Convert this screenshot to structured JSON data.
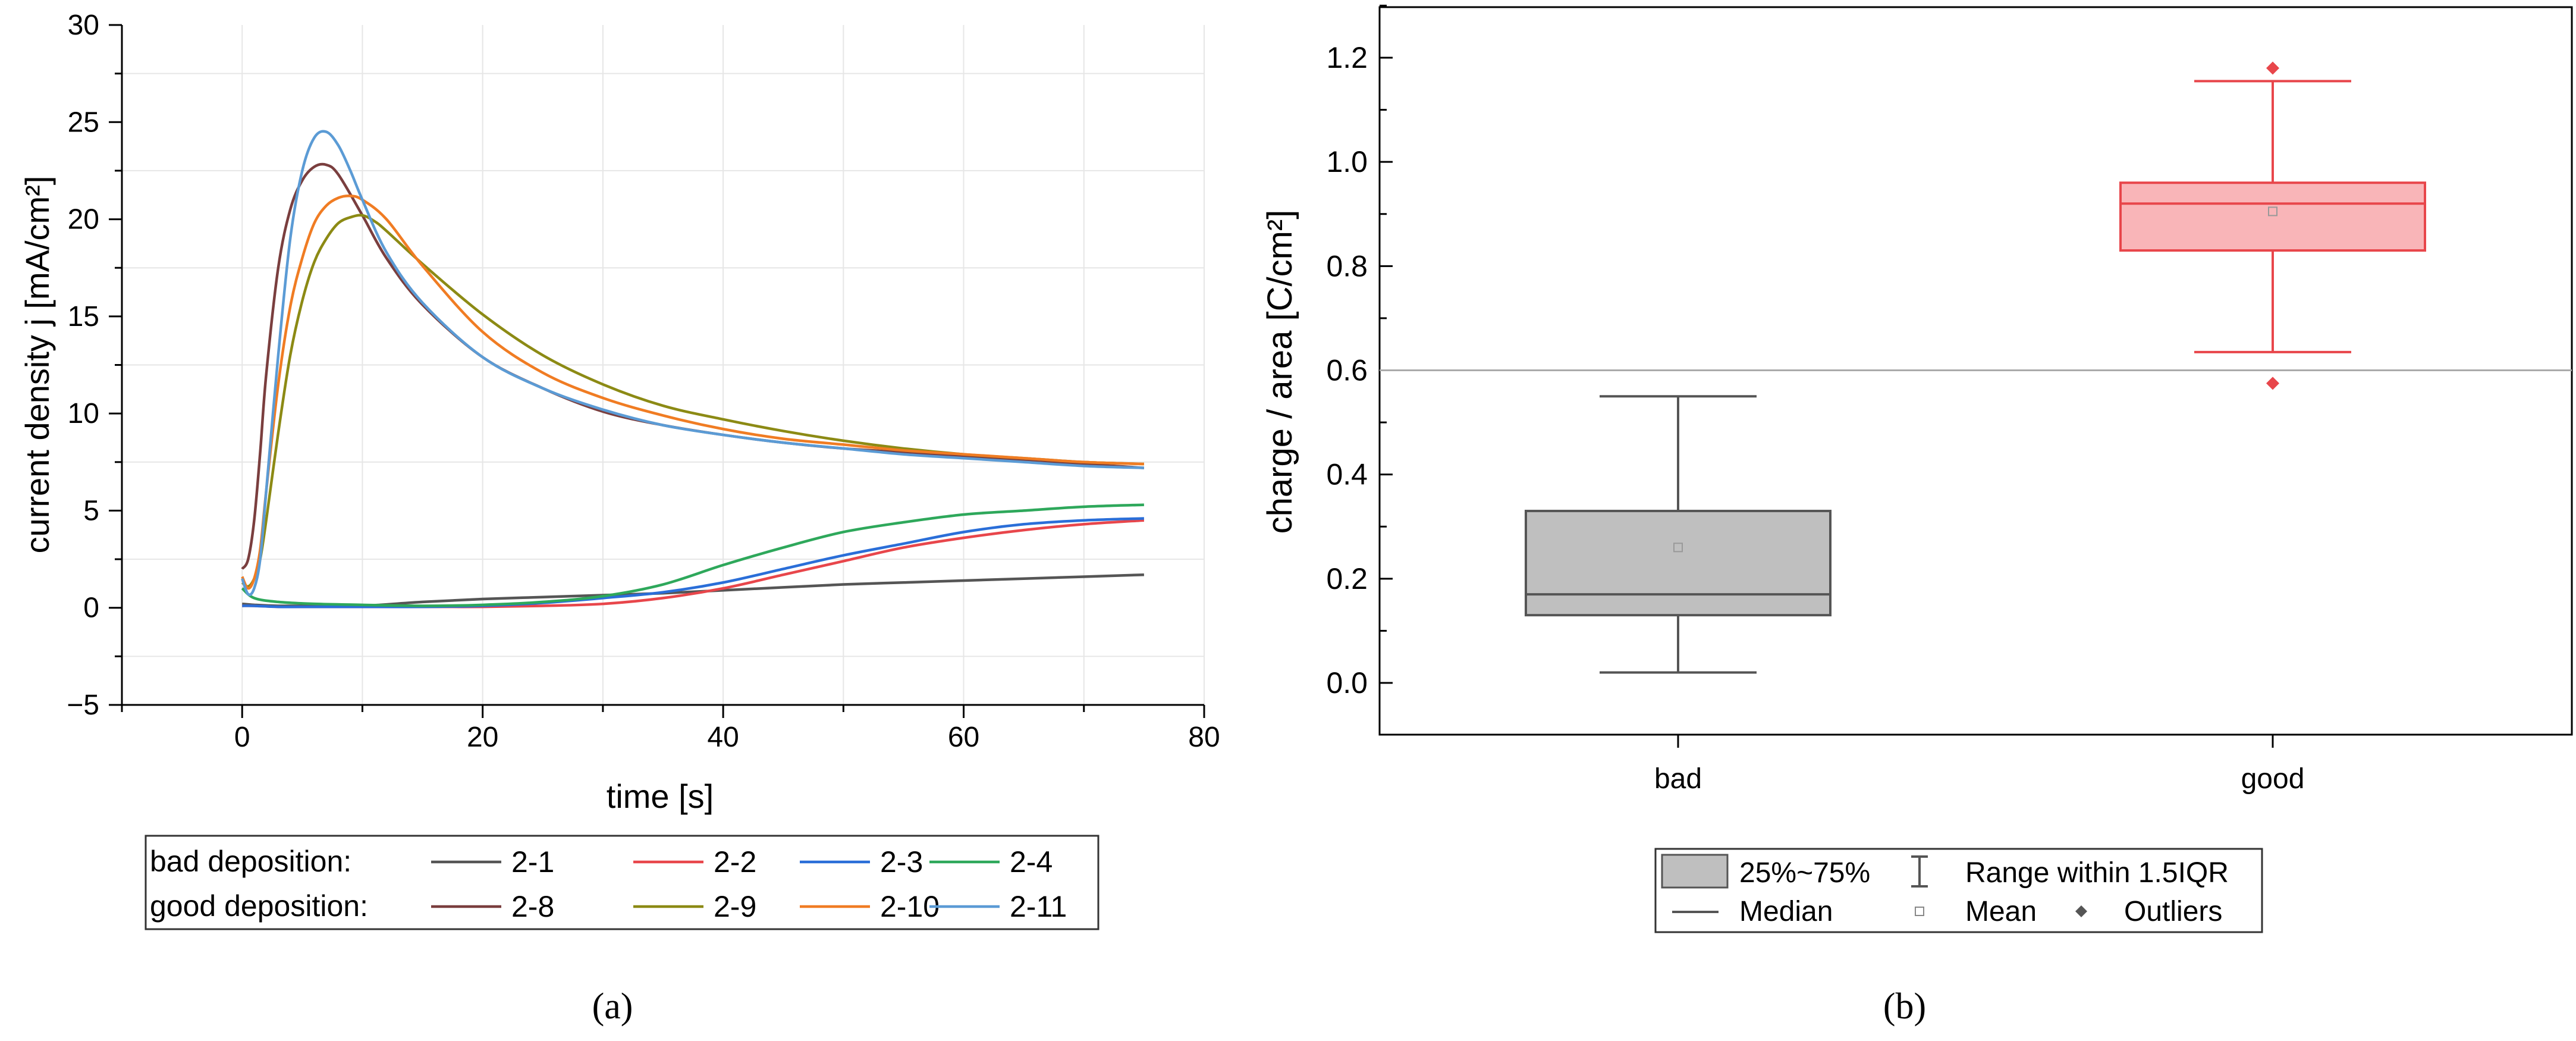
{
  "chart_data": [
    {
      "panel": "(a)",
      "type": "line",
      "xlabel": "time [s]",
      "ylabel": "current density j [mA/cm²]",
      "xlim": [
        -10,
        80
      ],
      "ylim": [
        -5,
        30
      ],
      "xticks": [
        0,
        20,
        40,
        60,
        80
      ],
      "yticks": [
        -5,
        0,
        5,
        10,
        15,
        20,
        25,
        30
      ],
      "ytick_labels": [
        "−5",
        "0",
        "5",
        "10",
        "15",
        "20",
        "25",
        "30"
      ],
      "grid": true,
      "legend": {
        "placement": "bottom",
        "row_labels": [
          "bad deposition:",
          "good deposition:"
        ]
      },
      "series": [
        {
          "name": "2-1",
          "group": "bad deposition",
          "color": "#555555",
          "x": [
            0,
            1,
            3,
            6,
            10,
            15,
            20,
            25,
            30,
            35,
            40,
            45,
            50,
            55,
            60,
            65,
            70,
            75
          ],
          "y": [
            0.2,
            0.15,
            0.1,
            0.1,
            0.1,
            0.3,
            0.45,
            0.55,
            0.65,
            0.75,
            0.9,
            1.05,
            1.2,
            1.3,
            1.4,
            1.5,
            1.6,
            1.7
          ]
        },
        {
          "name": "2-2",
          "group": "bad deposition",
          "color": "#e8464b",
          "x": [
            0,
            1,
            3,
            6,
            10,
            15,
            20,
            25,
            30,
            35,
            40,
            45,
            50,
            55,
            60,
            65,
            70,
            75
          ],
          "y": [
            0.1,
            0.1,
            0.05,
            0.05,
            0.05,
            0.05,
            0.05,
            0.1,
            0.2,
            0.5,
            1.0,
            1.7,
            2.4,
            3.1,
            3.6,
            4.0,
            4.3,
            4.5
          ]
        },
        {
          "name": "2-3",
          "group": "bad deposition",
          "color": "#2a6ed8",
          "x": [
            0,
            1,
            3,
            6,
            10,
            15,
            20,
            25,
            30,
            35,
            40,
            45,
            50,
            55,
            60,
            65,
            70,
            75
          ],
          "y": [
            0.1,
            0.1,
            0.05,
            0.05,
            0.05,
            0.05,
            0.1,
            0.25,
            0.5,
            0.8,
            1.3,
            2.0,
            2.7,
            3.3,
            3.9,
            4.3,
            4.5,
            4.6
          ]
        },
        {
          "name": "2-4",
          "group": "bad deposition",
          "color": "#2ea85b",
          "x": [
            0,
            1,
            3,
            6,
            10,
            15,
            20,
            25,
            30,
            35,
            40,
            45,
            50,
            55,
            60,
            65,
            70,
            75
          ],
          "y": [
            1.0,
            0.5,
            0.3,
            0.2,
            0.15,
            0.1,
            0.15,
            0.3,
            0.6,
            1.2,
            2.2,
            3.1,
            3.9,
            4.4,
            4.8,
            5.0,
            5.2,
            5.3
          ]
        },
        {
          "name": "2-8",
          "group": "good deposition",
          "color": "#7a3e3e",
          "x": [
            0,
            0.5,
            1,
            1.5,
            2,
            3,
            4,
            5,
            6,
            7,
            8,
            10,
            12,
            15,
            20,
            25,
            30,
            35,
            40,
            45,
            50,
            55,
            60,
            65,
            70,
            75
          ],
          "y": [
            2.0,
            2.5,
            4.5,
            8,
            12,
            17.5,
            20.5,
            22,
            22.7,
            22.8,
            22.3,
            20.2,
            18.0,
            15.6,
            12.9,
            11.3,
            10.1,
            9.4,
            8.9,
            8.5,
            8.2,
            8.0,
            7.8,
            7.6,
            7.4,
            7.2
          ]
        },
        {
          "name": "2-9",
          "group": "good deposition",
          "color": "#8c8a14",
          "x": [
            0,
            0.5,
            1,
            1.5,
            2,
            3,
            4,
            5,
            6,
            7,
            8,
            9,
            10,
            11,
            12,
            15,
            20,
            25,
            30,
            35,
            40,
            45,
            50,
            55,
            60,
            65,
            70,
            75
          ],
          "y": [
            1.3,
            1.1,
            1.5,
            2.5,
            4.5,
            9,
            13,
            15.8,
            17.8,
            19.0,
            19.8,
            20.1,
            20.2,
            19.9,
            19.4,
            17.7,
            15.1,
            13.0,
            11.5,
            10.4,
            9.7,
            9.1,
            8.6,
            8.2,
            7.9,
            7.7,
            7.5,
            7.4
          ]
        },
        {
          "name": "2-10",
          "group": "good deposition",
          "color": "#f07c23",
          "x": [
            0,
            0.5,
            1,
            1.5,
            2,
            3,
            4,
            5,
            6,
            7,
            8,
            9,
            10,
            12,
            15,
            20,
            25,
            30,
            35,
            40,
            45,
            50,
            55,
            60,
            65,
            70,
            75
          ],
          "y": [
            1.6,
            1.0,
            1.5,
            3,
            6,
            11.5,
            15.5,
            18,
            19.8,
            20.7,
            21.1,
            21.2,
            21.0,
            20.0,
            17.6,
            14.2,
            12.1,
            10.8,
            9.9,
            9.2,
            8.7,
            8.4,
            8.1,
            7.9,
            7.7,
            7.5,
            7.4
          ]
        },
        {
          "name": "2-11",
          "group": "good deposition",
          "color": "#5b9bd5",
          "x": [
            0,
            0.5,
            1,
            1.5,
            2,
            3,
            4,
            5,
            6,
            7,
            8,
            9,
            10,
            12,
            15,
            20,
            25,
            30,
            35,
            40,
            45,
            50,
            55,
            60,
            65,
            70,
            75
          ],
          "y": [
            1.5,
            0.7,
            1.0,
            2.5,
            6,
            13,
            19,
            22.5,
            24.2,
            24.5,
            23.8,
            22.5,
            21.0,
            18.3,
            15.7,
            12.9,
            11.3,
            10.2,
            9.4,
            8.9,
            8.5,
            8.2,
            7.9,
            7.7,
            7.5,
            7.3,
            7.2
          ]
        }
      ],
      "caption": "(a)"
    },
    {
      "panel": "(b)",
      "type": "box",
      "ylabel": "charge / area [C/cm²]",
      "ylim": [
        -0.1,
        1.3
      ],
      "yticks": [
        0.0,
        0.2,
        0.4,
        0.6,
        0.8,
        1.0,
        1.2
      ],
      "ytick_labels": [
        "0.0",
        "0.2",
        "0.4",
        "0.6",
        "0.8",
        "1.0",
        "1.2"
      ],
      "reference_line": 0.6,
      "categories": [
        "bad",
        "good"
      ],
      "boxes": [
        {
          "category": "bad",
          "color": "#555555",
          "fill": "#bfbfbf",
          "whisker_low": 0.02,
          "q1": 0.13,
          "median": 0.17,
          "q3": 0.33,
          "whisker_high": 0.55,
          "mean": 0.26,
          "outliers": []
        },
        {
          "category": "good",
          "color": "#e8464b",
          "fill": "#f9b5b8",
          "whisker_low": 0.635,
          "q1": 0.83,
          "median": 0.92,
          "q3": 0.96,
          "whisker_high": 1.155,
          "mean": 0.905,
          "outliers": [
            0.575,
            1.18
          ]
        }
      ],
      "legend": {
        "placement": "bottom",
        "box_label": "25%~75%",
        "range_label": "Range within 1.5IQR",
        "median_label": "Median",
        "mean_label": "Mean",
        "outliers_label": "Outliers"
      },
      "caption": "(b)"
    }
  ]
}
